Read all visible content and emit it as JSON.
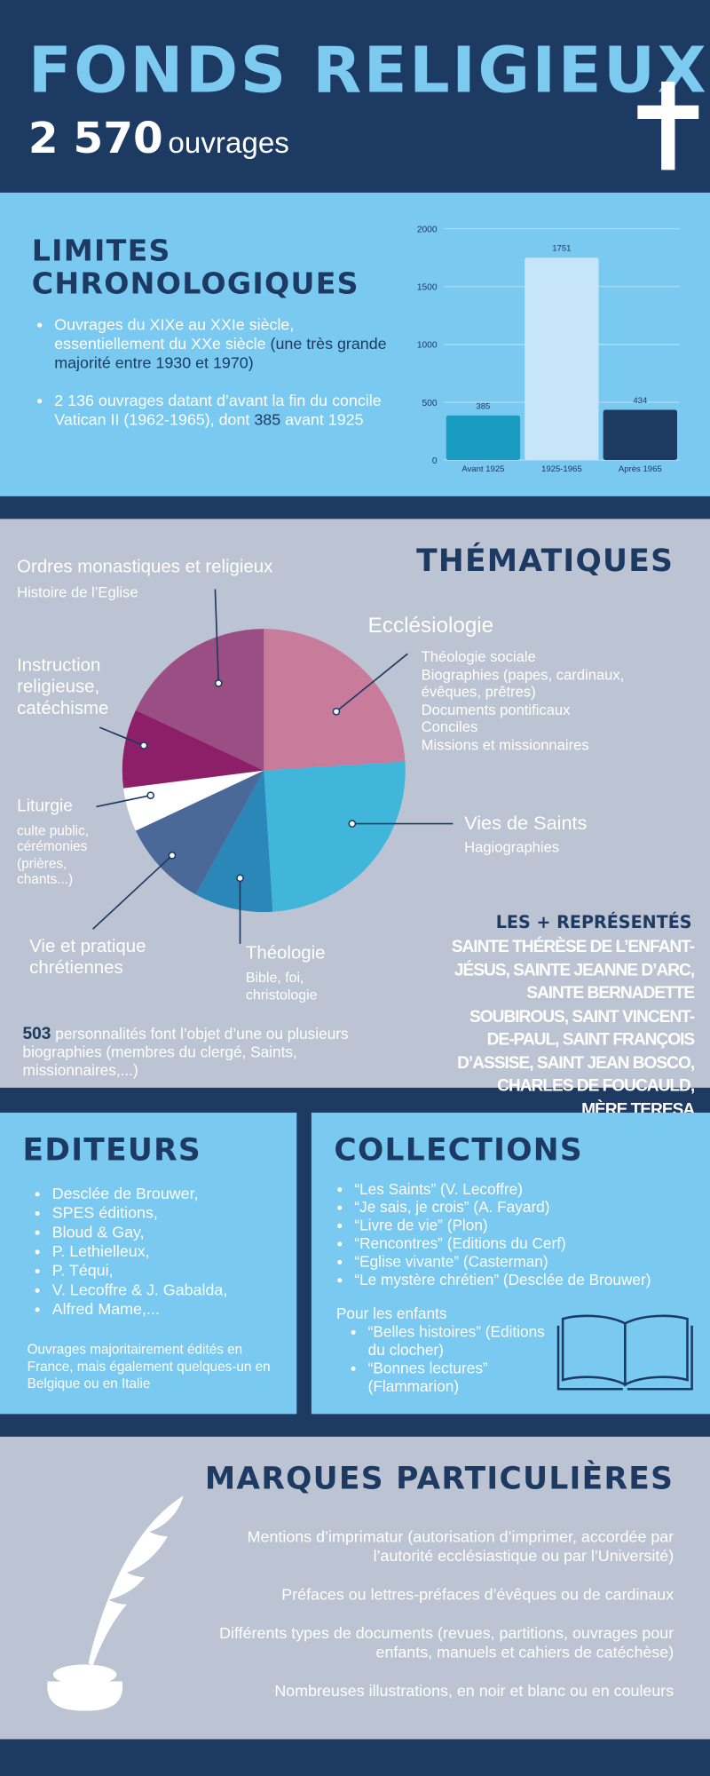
{
  "header": {
    "title": "FONDS RELIGIEUX",
    "count": "2 570",
    "count_unit": "ouvrages"
  },
  "chronology": {
    "title": "LIMITES CHRONOLOGIQUES",
    "bullets": [
      [
        {
          "text": "Ouvrages du XIXe au XXIe siècle, essentiellement du XXe siècle",
          "emphasis": false
        },
        {
          "text": "(une très grande majorité entre 1930 et 1970)",
          "emphasis": true
        }
      ],
      [
        {
          "text": "2 136 ouvrages datant d’avant la fin du concile Vatican II (1962-1965), dont",
          "emphasis": false
        },
        {
          "text": "385",
          "emphasis": true
        },
        {
          "text": "avant 1925",
          "emphasis": false
        }
      ]
    ],
    "chart": {
      "type": "bar",
      "categories": [
        "Avant 1925",
        "1925-1965",
        "Après 1965"
      ],
      "values": [
        385,
        1751,
        434
      ],
      "colors": [
        "#1a9cc2",
        "#c6e5f8",
        "#1d3a63"
      ],
      "ylim": [
        0,
        2000
      ],
      "yticks": [
        0,
        500,
        1000,
        1500,
        2000
      ],
      "grid": true
    }
  },
  "themes": {
    "title": "THÉMATIQUES",
    "chart": {
      "type": "pie",
      "categories": [
        "Ecclésiologie",
        "Vies de Saints",
        "Théologie",
        "Vie et pratique chrétiennes",
        "Liturgie",
        "Instruction religieuse, catéchisme",
        "Ordres monastiques et religieux"
      ],
      "values": [
        24,
        25,
        9,
        10,
        5,
        9,
        18
      ],
      "colors": [
        "#c97b9b",
        "#40b6da",
        "#2c87b9",
        "#4a6898",
        "#ffffff",
        "#8d1f69",
        "#9a4e83"
      ],
      "details": [
        [
          "Théologie sociale",
          "Biographies (papes, cardinaux, évêques, prêtres)",
          "Documents pontificaux",
          "Conciles",
          "Missions et missionnaires"
        ],
        [
          "Hagiographies"
        ],
        [
          "Bible, foi, christologie"
        ],
        [],
        [
          "culte public, cérémonies (prières, chants...)"
        ],
        [],
        [
          "Histoire de l’Eglise"
        ]
      ]
    },
    "personalities": {
      "count": "503",
      "text": "personnalités font l’objet d’une ou plusieurs biographies (membres du clergé, Saints, missionnaires,...)"
    },
    "most_title": "LES + REPRÉSENTÉS",
    "most": "SAINTE THÉRÈSE DE L’ENFANT-JÉSUS, SAINTE JEANNE D’ARC, SAINTE BERNADETTE SOUBIROUS, SAINT VINCENT-DE-PAUL, SAINT FRANÇOIS D’ASSISE, SAINT JEAN BOSCO, CHARLES DE FOUCAULD, MÈRE TERESA"
  },
  "publishers": {
    "title": "EDITEURS",
    "items": [
      "Desclée de Brouwer,",
      "SPES éditions,",
      "Bloud & Gay,",
      "P. Lethielleux,",
      "P. Téqui,",
      "V. Lecoffre & J. Gabalda,",
      "Alfred Mame,..."
    ],
    "note": "Ouvrages majoritairement édités en France, mais également quelques-un en Belgique ou en Italie"
  },
  "collections": {
    "title": "COLLECTIONS",
    "items": [
      "“Les Saints” (V. Lecoffre)",
      "“Je sais, je crois” (A. Fayard)",
      "“Livre de vie” (Plon)",
      "“Rencontres” (Editions du Cerf)",
      "“Eglise vivante” (Casterman)",
      "“Le mystère chrétien” (Desclée de Brouwer)"
    ],
    "kids": {
      "title": "Pour les enfants",
      "items": [
        "“Belles histoires” (Editions du clocher)",
        "“Bonnes lectures” (Flammarion)"
      ]
    }
  },
  "marks": {
    "title": "MARQUES PARTICULIÈRES",
    "items": [
      "Mentions d’imprimatur (autorisation d’imprimer, accordée par l’autorité ecclésiastique ou par l’Université)",
      "Préfaces ou lettres-préfaces d’évêques ou de cardinaux",
      "Différents types de documents (revues, partitions, ouvrages pour enfants, manuels et cahiers de catéchèse)",
      "Nombreuses illustrations, en noir et blanc ou en couleurs"
    ]
  }
}
